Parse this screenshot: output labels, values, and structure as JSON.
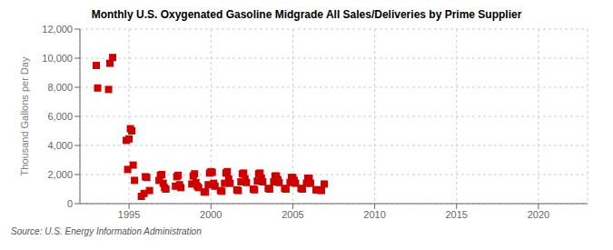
{
  "chart_data": {
    "type": "scatter",
    "title": "Monthly U.S. Oxygenated Gasoline Midgrade All Sales/Deliveries by Prime Supplier",
    "ylabel": "Thousand Gallons per Day",
    "annotations": [
      "Source: U.S. Energy Information Administration"
    ],
    "color": "#cc0000",
    "marker": "square",
    "grid": true,
    "xlim": [
      1992,
      2023
    ],
    "ylim": [
      0,
      12000
    ],
    "xticks": [
      1995,
      2000,
      2005,
      2010,
      2015,
      2020
    ],
    "yticks": [
      0,
      {
        "value": 2000,
        "label": "2,000"
      },
      {
        "value": 4000,
        "label": "4,000"
      },
      {
        "value": 6000,
        "label": "6,000"
      },
      {
        "value": 8000,
        "label": "8,000"
      },
      {
        "value": 10000,
        "label": "10,000"
      },
      {
        "value": 12000,
        "label": "12,000"
      }
    ],
    "x": [
      1993.0,
      1993.083,
      1993.75,
      1993.833,
      1994.0,
      1994.833,
      1994.917,
      1995.0,
      1995.083,
      1995.167,
      1995.25,
      1995.333,
      1995.75,
      1995.917,
      1996.0,
      1996.083,
      1996.25,
      1996.833,
      1996.917,
      1997.0,
      1997.083,
      1997.167,
      1997.25,
      1997.833,
      1997.917,
      1998.0,
      1998.083,
      1998.167,
      1998.833,
      1998.917,
      1999.0,
      1999.083,
      1999.167,
      1999.25,
      1999.583,
      1999.667,
      1999.833,
      1999.917,
      2000.0,
      2000.083,
      2000.167,
      2000.25,
      2000.583,
      2000.667,
      2000.833,
      2000.917,
      2001.0,
      2001.083,
      2001.167,
      2001.583,
      2001.667,
      2001.833,
      2001.917,
      2002.0,
      2002.083,
      2002.167,
      2002.583,
      2002.667,
      2002.833,
      2002.917,
      2003.0,
      2003.083,
      2003.167,
      2003.5,
      2003.583,
      2003.833,
      2003.917,
      2004.0,
      2004.083,
      2004.167,
      2004.5,
      2004.583,
      2004.833,
      2004.917,
      2005.0,
      2005.083,
      2005.167,
      2005.5,
      2005.583,
      2005.833,
      2005.917,
      2006.0,
      2006.083,
      2006.417,
      2006.5,
      2006.75,
      2006.917
    ],
    "values": [
      9500,
      7950,
      7850,
      9650,
      10050,
      4350,
      2350,
      4450,
      5150,
      5000,
      2650,
      1600,
      500,
      700,
      1850,
      1800,
      900,
      1600,
      1950,
      2000,
      1400,
      1100,
      1000,
      1200,
      1850,
      1950,
      1300,
      1100,
      1350,
      1900,
      2050,
      1450,
      1200,
      1100,
      800,
      800,
      1300,
      2100,
      2200,
      2150,
      1400,
      1200,
      900,
      850,
      1400,
      2100,
      2200,
      1700,
      1400,
      950,
      900,
      1500,
      2050,
      2100,
      1700,
      1450,
      1000,
      950,
      1550,
      2050,
      2100,
      1750,
      1500,
      1050,
      1000,
      1500,
      1900,
      1900,
      1650,
      1450,
      1050,
      1000,
      1450,
      1800,
      1800,
      1600,
      1400,
      1050,
      1000,
      1400,
      1750,
      1750,
      1400,
      950,
      950,
      900,
      1350
    ]
  }
}
